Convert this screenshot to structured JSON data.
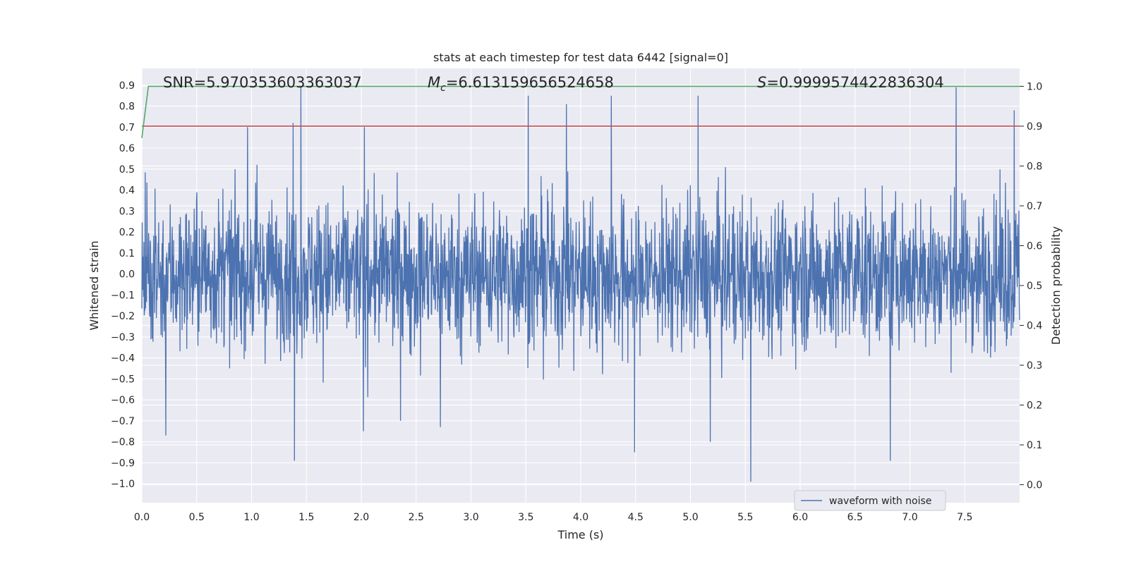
{
  "chart_data": {
    "type": "line",
    "title": "stats at each timestep for test data 6442 [signal=0]",
    "xlabel": "Time (s)",
    "ylabel": "Whitened strain",
    "y2label": "Detection probability",
    "xlim": [
      0.0,
      8.0
    ],
    "ylim": [
      -1.09,
      0.98
    ],
    "y2lim": [
      -0.045,
      1.045
    ],
    "xticks": [
      "0.0",
      "0.5",
      "1.0",
      "1.5",
      "2.0",
      "2.5",
      "3.0",
      "3.5",
      "4.0",
      "4.5",
      "5.0",
      "5.5",
      "6.0",
      "6.5",
      "7.0",
      "7.5"
    ],
    "xtick_values": [
      0.0,
      0.5,
      1.0,
      1.5,
      2.0,
      2.5,
      3.0,
      3.5,
      4.0,
      4.5,
      5.0,
      5.5,
      6.0,
      6.5,
      7.0,
      7.5
    ],
    "yticks": [
      "0.9",
      "0.8",
      "0.7",
      "0.6",
      "0.5",
      "0.4",
      "0.3",
      "0.2",
      "0.1",
      "0.0",
      "−0.1",
      "−0.2",
      "−0.3",
      "−0.4",
      "−0.5",
      "−0.6",
      "−0.7",
      "−0.8",
      "−0.9",
      "−1.0"
    ],
    "ytick_values": [
      0.9,
      0.8,
      0.7,
      0.6,
      0.5,
      0.4,
      0.3,
      0.2,
      0.1,
      0.0,
      -0.1,
      -0.2,
      -0.3,
      -0.4,
      -0.5,
      -0.6,
      -0.7,
      -0.8,
      -0.9,
      -1.0
    ],
    "y2ticks": [
      "1.0",
      "0.9",
      "0.8",
      "0.7",
      "0.6",
      "0.5",
      "0.4",
      "0.3",
      "0.2",
      "0.1",
      "0.0"
    ],
    "y2tick_values": [
      1.0,
      0.9,
      0.8,
      0.7,
      0.6,
      0.5,
      0.4,
      0.3,
      0.2,
      0.1,
      0.0
    ],
    "annotations": {
      "snr": "SNR=5.970353603363037",
      "mc_symbol": "M",
      "mc_sub": "c",
      "mc_value": "=6.613159656524658",
      "s_symbol": "S",
      "s_value": "=0.9999574422836304"
    },
    "legend": {
      "label": "waveform with noise",
      "location": "lower-right"
    },
    "series": [
      {
        "name": "waveform with noise",
        "color": "#4c72b0",
        "kind": "noisy-waveform",
        "x_range": [
          0.0,
          8.0
        ],
        "approx_envelope": [
          -1.0,
          0.89
        ],
        "peaks": [
          {
            "x": 1.45,
            "y": 0.89
          },
          {
            "x": 1.38,
            "y": 0.72
          },
          {
            "x": 3.52,
            "y": 0.85
          },
          {
            "x": 4.28,
            "y": 0.85
          },
          {
            "x": 5.07,
            "y": 0.85
          },
          {
            "x": 7.42,
            "y": 0.89
          },
          {
            "x": 7.95,
            "y": 0.78
          },
          {
            "x": 3.87,
            "y": 0.81
          },
          {
            "x": 2.03,
            "y": 0.7
          }
        ],
        "troughs": [
          {
            "x": 5.55,
            "y": -0.99
          },
          {
            "x": 1.39,
            "y": -0.89
          },
          {
            "x": 6.82,
            "y": -0.89
          },
          {
            "x": 4.49,
            "y": -0.85
          },
          {
            "x": 0.22,
            "y": -0.77
          },
          {
            "x": 5.18,
            "y": -0.8
          },
          {
            "x": 2.02,
            "y": -0.75
          },
          {
            "x": 2.72,
            "y": -0.73
          }
        ]
      },
      {
        "name": "detection probability",
        "color": "#55a868",
        "axis": "right",
        "x": [
          0.0,
          0.06,
          0.12,
          8.0
        ],
        "values": [
          0.87,
          1.0,
          1.0,
          1.0
        ]
      },
      {
        "name": "threshold",
        "color": "#c44e52",
        "axis": "right",
        "x": [
          0.0,
          8.0
        ],
        "values": [
          0.9,
          0.9
        ]
      }
    ],
    "grid": true
  }
}
